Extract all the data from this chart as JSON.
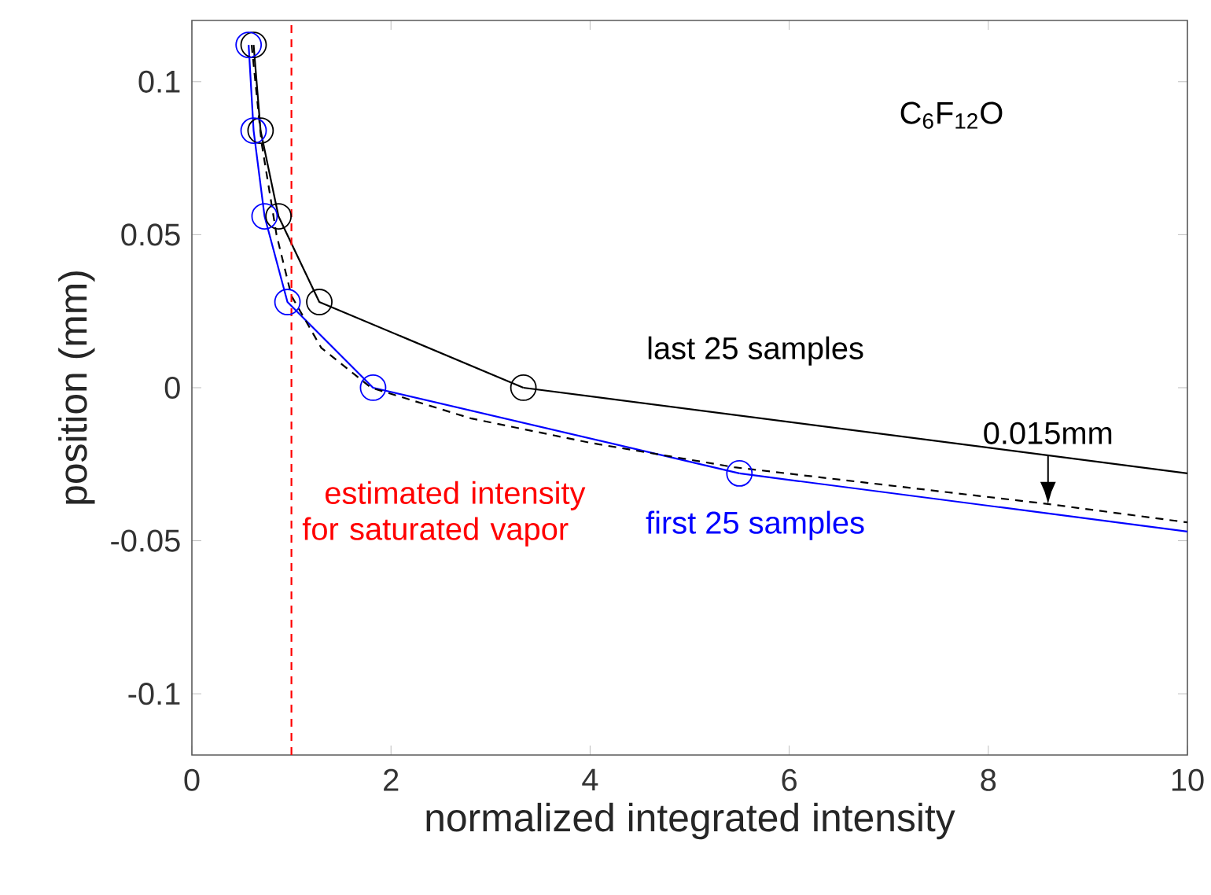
{
  "chart_data": {
    "type": "line",
    "xlabel": "normalized integrated intensity",
    "ylabel": "position (mm)",
    "xlim": [
      0,
      10
    ],
    "ylim": [
      -0.12,
      0.12
    ],
    "xticks": [
      0,
      2,
      4,
      6,
      8,
      10
    ],
    "yticks": [
      -0.1,
      -0.05,
      0,
      0.05,
      0.1
    ],
    "legend": false,
    "grid": false,
    "series": [
      {
        "name": "last 25 samples",
        "color": "#000000",
        "marker": "circle",
        "x": [
          0.62,
          0.69,
          0.87,
          1.28,
          3.33
        ],
        "values": [
          0.112,
          0.084,
          0.056,
          0.028,
          0
        ]
      },
      {
        "color": "#000000",
        "marker": "none",
        "x": [
          3.33,
          10
        ],
        "values": [
          0,
          -0.028
        ]
      },
      {
        "name": "first 25 samples",
        "color": "#0000ff",
        "marker": "circle",
        "x": [
          0.57,
          0.62,
          0.73,
          0.96,
          1.82,
          5.5
        ],
        "values": [
          0.112,
          0.084,
          0.056,
          0.028,
          0,
          -0.028
        ]
      },
      {
        "color": "#0000ff",
        "marker": "none",
        "x": [
          5.5,
          10
        ],
        "values": [
          -0.028,
          -0.047
        ]
      },
      {
        "color": "#000000",
        "marker": "none",
        "line_style": "dashed",
        "x": [
          0.6,
          0.7,
          0.85,
          1.0,
          1.3,
          1.8,
          2.8,
          4,
          5.45,
          8.6,
          10
        ],
        "values": [
          0.112,
          0.08,
          0.05,
          0.03,
          0.013,
          0.0,
          -0.01,
          -0.018,
          -0.026,
          -0.038,
          -0.044
        ]
      }
    ],
    "ref_lines": [
      {
        "axis": "x",
        "value": 1,
        "label": "estimated intensity for saturated vapor",
        "color": "#ff0000",
        "line_style": "dashed"
      }
    ],
    "annotations": [
      "C$_{6}$F$_{12}$O",
      {
        "text": "0.015mm",
        "x": 8.6,
        "y": -0.022
      }
    ]
  }
}
